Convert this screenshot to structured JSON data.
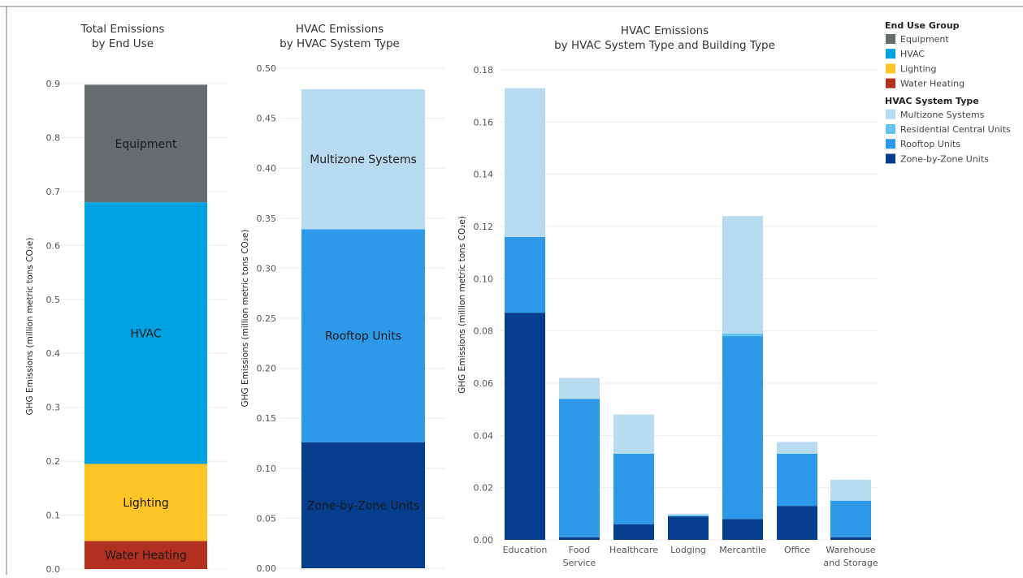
{
  "colors": {
    "Equipment": "#646e6f",
    "HVAC": "#00a2e4",
    "Lighting": "#ffc425",
    "Water Heating": "#b2301f",
    "Multizone Systems": "#b8dcef",
    "Residential Central Units": "#63c5ef",
    "Rooftop Units": "#2d9ae9",
    "Zone-by-Zone Units": "#063e8f"
  },
  "chart_data": [
    {
      "type": "bar",
      "stacked": true,
      "title": "Total Emissions\nby End Use",
      "ylabel": "GHG Emissions (million metric tons CO₂e)",
      "ylim": [
        0,
        0.9
      ],
      "yticks": [
        "0.0",
        "0.1",
        "0.2",
        "0.3",
        "0.4",
        "0.5",
        "0.6",
        "0.7",
        "0.8",
        "0.9"
      ],
      "grid": true,
      "categories": [
        ""
      ],
      "series": [
        {
          "name": "Water Heating",
          "values": [
            0.052
          ]
        },
        {
          "name": "Lighting",
          "values": [
            0.143
          ]
        },
        {
          "name": "HVAC",
          "values": [
            0.485
          ]
        },
        {
          "name": "Equipment",
          "values": [
            0.218
          ]
        }
      ]
    },
    {
      "type": "bar",
      "stacked": true,
      "title": "HVAC Emissions\nby HVAC System Type",
      "ylabel": "GHG Emissions (million metric tons CO₂e)",
      "ylim": [
        0,
        0.5
      ],
      "yticks": [
        "0.00",
        "0.05",
        "0.10",
        "0.15",
        "0.20",
        "0.25",
        "0.30",
        "0.35",
        "0.40",
        "0.45",
        "0.50"
      ],
      "grid": true,
      "categories": [
        ""
      ],
      "series": [
        {
          "name": "Zone-by-Zone Units",
          "values": [
            0.126
          ]
        },
        {
          "name": "Rooftop Units",
          "values": [
            0.213
          ]
        },
        {
          "name": "Multizone Systems",
          "values": [
            0.14
          ]
        }
      ]
    },
    {
      "type": "bar",
      "stacked": true,
      "title": "HVAC Emissions\nby HVAC System Type and Building Type",
      "ylabel": "GHG Emissions (million metric tons CO₂e)",
      "ylim": [
        0,
        0.18
      ],
      "yticks": [
        "0.00",
        "0.02",
        "0.04",
        "0.06",
        "0.08",
        "0.10",
        "0.12",
        "0.14",
        "0.16",
        "0.18"
      ],
      "grid": true,
      "categories": [
        "Education",
        "Food\nService",
        "Healthcare",
        "Lodging",
        "Mercantile",
        "Office",
        "Warehouse\nand Storage"
      ],
      "series": [
        {
          "name": "Zone-by-Zone Units",
          "values": [
            0.087,
            0.001,
            0.006,
            0.009,
            0.008,
            0.013,
            0.001
          ]
        },
        {
          "name": "Rooftop Units",
          "values": [
            0.029,
            0.053,
            0.027,
            0.0,
            0.07,
            0.02,
            0.014
          ]
        },
        {
          "name": "Residential Central Units",
          "values": [
            0.0,
            0.0,
            0.0,
            0.0005,
            0.001,
            0.0,
            0.0
          ]
        },
        {
          "name": "Multizone Systems",
          "values": [
            0.057,
            0.008,
            0.015,
            0.0005,
            0.045,
            0.0045,
            0.008
          ]
        }
      ]
    }
  ],
  "legend": {
    "groups": [
      {
        "title": "End Use Group",
        "items": [
          "Equipment",
          "HVAC",
          "Lighting",
          "Water Heating"
        ]
      },
      {
        "title": "HVAC System Type",
        "items": [
          "Multizone Systems",
          "Residential Central Units",
          "Rooftop Units",
          "Zone-by-Zone Units"
        ]
      }
    ]
  }
}
